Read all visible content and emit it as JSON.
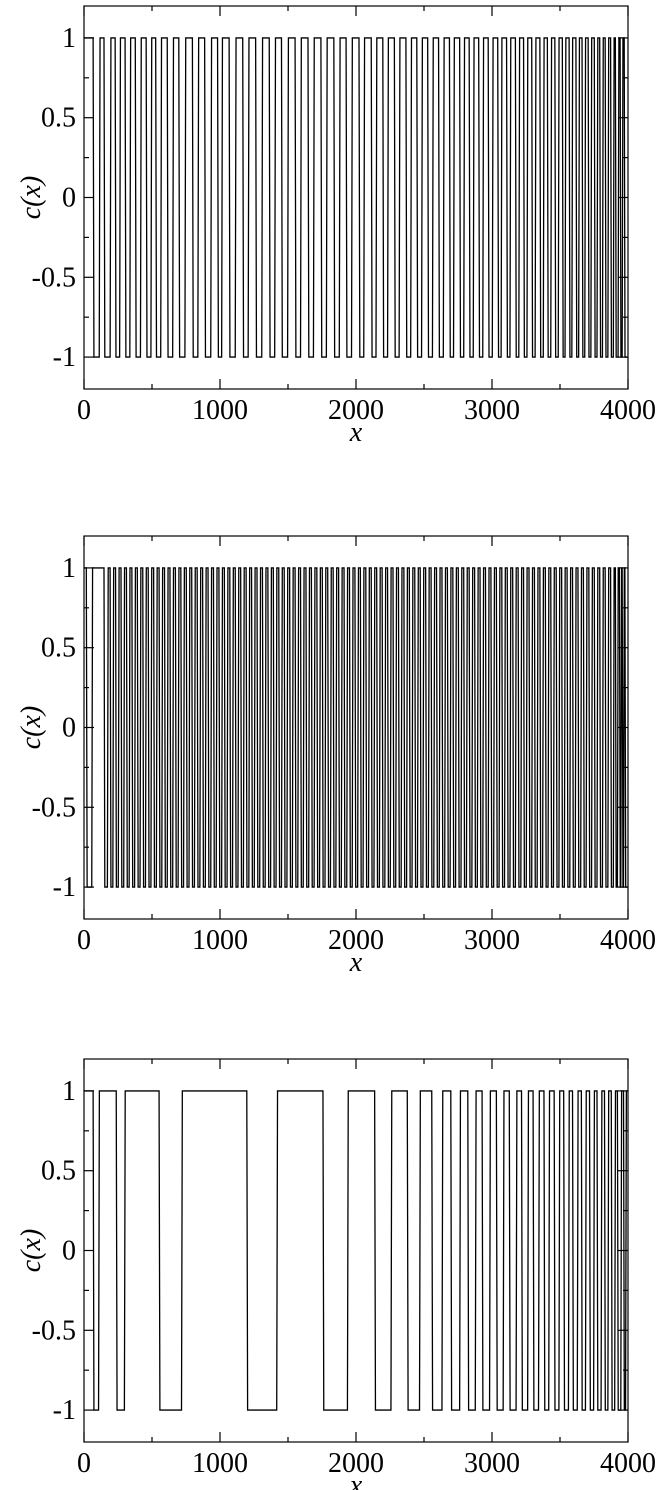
{
  "chart_data": [
    {
      "type": "line",
      "title": "",
      "xlabel": "x",
      "ylabel": "c(x)",
      "xlim": [
        0,
        4000
      ],
      "ylim": [
        -1.2,
        1.2
      ],
      "xticks": [
        0,
        1000,
        2000,
        3000,
        4000
      ],
      "xtick_labels": [
        "0",
        "1000",
        "2000",
        "3000",
        "4000"
      ],
      "yticks": [
        1,
        0.5,
        0,
        -0.5,
        -1
      ],
      "ytick_labels": [
        "1",
        "0.5",
        "0",
        "-0.5",
        "-1"
      ],
      "grid": false,
      "series": [
        {
          "values": [
            1,
            -1
          ],
          "transitions": [
            70,
            115,
            150,
            195,
            232,
            265,
            305,
            340,
            380,
            418,
            460,
            495,
            530,
            567,
            615,
            655,
            700,
            745,
            800,
            840,
            890,
            935,
            985,
            1015,
            1070,
            1115,
            1170,
            1210,
            1265,
            1310,
            1365,
            1405,
            1455,
            1500,
            1555,
            1595,
            1650,
            1690,
            1745,
            1785,
            1840,
            1880,
            1930,
            1970,
            2025,
            2060,
            2115,
            2150,
            2200,
            2235,
            2285,
            2320,
            2370,
            2405,
            2450,
            2485,
            2530,
            2565,
            2610,
            2645,
            2690,
            2720,
            2765,
            2795,
            2835,
            2865,
            2905,
            2935,
            2975,
            3005,
            3045,
            3070,
            3110,
            3135,
            3175,
            3200,
            3235,
            3260,
            3295,
            3320,
            3355,
            3380,
            3410,
            3435,
            3465,
            3490,
            3520,
            3540,
            3570,
            3590,
            3620,
            3640,
            3665,
            3685,
            3710,
            3730,
            3755,
            3775,
            3795,
            3815,
            3835,
            3855,
            3875,
            3895,
            3910,
            3930,
            3945,
            3960,
            3975
          ]
        }
      ]
    },
    {
      "type": "line",
      "title": "",
      "xlabel": "x",
      "ylabel": "c(x)",
      "xlim": [
        0,
        4000
      ],
      "ylim": [
        -1.2,
        1.2
      ],
      "xticks": [
        0,
        1000,
        2000,
        3000,
        4000
      ],
      "xtick_labels": [
        "0",
        "1000",
        "2000",
        "3000",
        "4000"
      ],
      "yticks": [
        1,
        0.5,
        0,
        -0.5,
        -1
      ],
      "ytick_labels": [
        "1",
        "0.5",
        "0",
        "-0.5",
        "-1"
      ],
      "grid": false,
      "series": [
        {
          "values": [
            1,
            -1
          ],
          "transitions": [
            20,
            60,
            150,
            175,
            195,
            215,
            235,
            255,
            275,
            295,
            315,
            335,
            355,
            375,
            395,
            415,
            435,
            455,
            475,
            495,
            515,
            535,
            555,
            575,
            595,
            615,
            635,
            655,
            675,
            695,
            715,
            735,
            755,
            775,
            795,
            815,
            835,
            855,
            875,
            895,
            915,
            935,
            955,
            975,
            995,
            1015,
            1035,
            1055,
            1075,
            1095,
            1115,
            1135,
            1155,
            1175,
            1195,
            1215,
            1235,
            1255,
            1275,
            1295,
            1315,
            1335,
            1355,
            1375,
            1395,
            1415,
            1435,
            1455,
            1475,
            1495,
            1515,
            1535,
            1555,
            1575,
            1595,
            1615,
            1635,
            1655,
            1675,
            1695,
            1715,
            1735,
            1755,
            1775,
            1795,
            1815,
            1835,
            1855,
            1875,
            1895,
            1915,
            1935,
            1955,
            1975,
            1995,
            2015,
            2035,
            2055,
            2075,
            2095,
            2115,
            2135,
            2155,
            2175,
            2195,
            2215,
            2235,
            2255,
            2275,
            2295,
            2315,
            2335,
            2355,
            2375,
            2395,
            2415,
            2435,
            2455,
            2475,
            2495,
            2515,
            2535,
            2555,
            2575,
            2595,
            2615,
            2635,
            2655,
            2675,
            2695,
            2715,
            2735,
            2755,
            2775,
            2795,
            2815,
            2835,
            2855,
            2875,
            2895,
            2915,
            2935,
            2955,
            2975,
            2995,
            3015,
            3035,
            3055,
            3075,
            3095,
            3115,
            3135,
            3155,
            3175,
            3195,
            3215,
            3235,
            3255,
            3275,
            3295,
            3315,
            3335,
            3355,
            3375,
            3395,
            3415,
            3435,
            3455,
            3475,
            3495,
            3515,
            3535,
            3555,
            3575,
            3595,
            3615,
            3635,
            3655,
            3675,
            3695,
            3715,
            3735,
            3755,
            3775,
            3795,
            3815,
            3835,
            3855,
            3875,
            3895,
            3910,
            3925,
            3940,
            3950,
            3960,
            3970,
            3980
          ]
        }
      ]
    },
    {
      "type": "line",
      "title": "",
      "xlabel": "x",
      "ylabel": "c(x)",
      "xlim": [
        0,
        4000
      ],
      "ylim": [
        -1.2,
        1.2
      ],
      "xticks": [
        0,
        1000,
        2000,
        3000,
        4000
      ],
      "xtick_labels": [
        "0",
        "1000",
        "2000",
        "3000",
        "4000"
      ],
      "yticks": [
        1,
        0.5,
        0,
        -0.5,
        -1
      ],
      "ytick_labels": [
        "1",
        "0.5",
        "0",
        "-0.5",
        "-1"
      ],
      "grid": false,
      "series": [
        {
          "values": [
            1,
            -1
          ],
          "transitions": [
            70,
            110,
            240,
            300,
            555,
            720,
            1200,
            1420,
            1760,
            1940,
            2140,
            2260,
            2380,
            2470,
            2560,
            2635,
            2700,
            2765,
            2825,
            2880,
            2930,
            2985,
            3035,
            3085,
            3130,
            3180,
            3220,
            3265,
            3305,
            3345,
            3385,
            3420,
            3460,
            3495,
            3530,
            3565,
            3595,
            3630,
            3660,
            3690,
            3720,
            3750,
            3775,
            3805,
            3830,
            3855,
            3880,
            3905,
            3925,
            3950,
            3970,
            3985
          ]
        }
      ]
    }
  ]
}
